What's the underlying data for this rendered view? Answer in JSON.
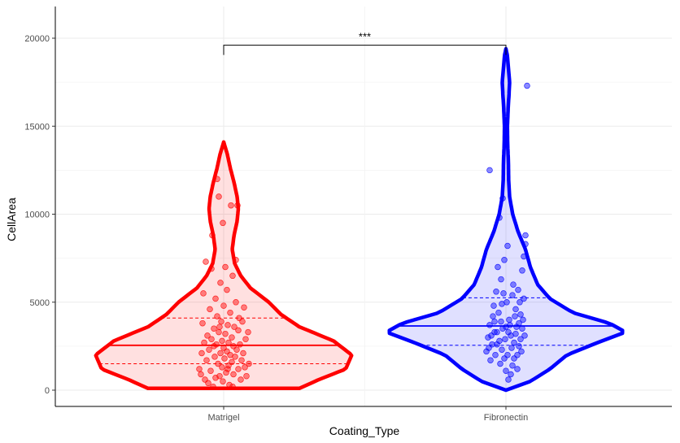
{
  "chart_data": {
    "type": "violin",
    "xlabel": "Coating_Type",
    "ylabel": "CellArea",
    "ylim": [
      -700,
      22000
    ],
    "yticks": [
      0,
      5000,
      10000,
      15000,
      20000
    ],
    "ytick_labels": [
      "0",
      "5000",
      "10000",
      "15000",
      "20000"
    ],
    "grid": true,
    "categories": [
      "Matrigel",
      "Fibronectin"
    ],
    "series": [
      {
        "name": "Matrigel",
        "color": "#ff0000",
        "median": 2550,
        "q1": 1500,
        "q3": 4100,
        "density_profile": [
          [
            100,
            0.62
          ],
          [
            600,
            0.78
          ],
          [
            1200,
            1.0
          ],
          [
            2000,
            1.05
          ],
          [
            2800,
            0.9
          ],
          [
            3600,
            0.62
          ],
          [
            4300,
            0.47
          ],
          [
            5000,
            0.37
          ],
          [
            5800,
            0.22
          ],
          [
            6500,
            0.14
          ],
          [
            7200,
            0.09
          ],
          [
            8000,
            0.07
          ],
          [
            8800,
            0.085
          ],
          [
            9600,
            0.11
          ],
          [
            10300,
            0.12
          ],
          [
            11000,
            0.11
          ],
          [
            11800,
            0.085
          ],
          [
            12600,
            0.055
          ],
          [
            13400,
            0.03
          ],
          [
            14100,
            0.0
          ]
        ],
        "points": [
          [
            -0.3,
            1200
          ],
          [
            -0.28,
            900
          ],
          [
            -0.26,
            3800
          ],
          [
            -0.25,
            5500
          ],
          [
            -0.24,
            2700
          ],
          [
            -0.23,
            600
          ],
          [
            -0.22,
            7300
          ],
          [
            -0.21,
            1700
          ],
          [
            -0.2,
            3100
          ],
          [
            -0.19,
            400
          ],
          [
            -0.18,
            2300
          ],
          [
            -0.17,
            4600
          ],
          [
            -0.16,
            1100
          ],
          [
            -0.15,
            2900
          ],
          [
            -0.14,
            8800
          ],
          [
            -0.13,
            200
          ],
          [
            -0.12,
            3500
          ],
          [
            -0.11,
            1900
          ],
          [
            -0.1,
            5200
          ],
          [
            -0.1,
            700
          ],
          [
            -0.09,
            2600
          ],
          [
            -0.08,
            12000
          ],
          [
            -0.08,
            4200
          ],
          [
            -0.07,
            1500
          ],
          [
            -0.06,
            3300
          ],
          [
            -0.06,
            11000
          ],
          [
            -0.05,
            800
          ],
          [
            -0.04,
            2100
          ],
          [
            -0.04,
            6100
          ],
          [
            -0.03,
            3900
          ],
          [
            -0.02,
            1300
          ],
          [
            -0.02,
            2800
          ],
          [
            -0.01,
            9500
          ],
          [
            -0.01,
            500
          ],
          [
            0.0,
            2400
          ],
          [
            0.0,
            4800
          ],
          [
            0.01,
            1800
          ],
          [
            0.02,
            3200
          ],
          [
            0.02,
            7000
          ],
          [
            0.03,
            1000
          ],
          [
            0.04,
            2200
          ],
          [
            0.04,
            5700
          ],
          [
            0.05,
            3700
          ],
          [
            0.06,
            1400
          ],
          [
            0.06,
            2700
          ],
          [
            0.07,
            300
          ],
          [
            0.08,
            4400
          ],
          [
            0.08,
            2000
          ],
          [
            0.09,
            10500
          ],
          [
            0.1,
            3000
          ],
          [
            0.1,
            1600
          ],
          [
            0.11,
            6500
          ],
          [
            0.12,
            2500
          ],
          [
            0.12,
            900
          ],
          [
            0.13,
            3600
          ],
          [
            0.14,
            1900
          ],
          [
            0.15,
            5000
          ],
          [
            0.16,
            2300
          ],
          [
            0.17,
            10500
          ],
          [
            0.18,
            1200
          ],
          [
            0.18,
            3400
          ],
          [
            0.19,
            4100
          ],
          [
            0.2,
            2600
          ],
          [
            0.21,
            600
          ],
          [
            0.22,
            1700
          ],
          [
            0.23,
            3900
          ],
          [
            0.24,
            2100
          ],
          [
            0.25,
            4700
          ],
          [
            0.26,
            1300
          ],
          [
            0.27,
            2900
          ],
          [
            0.28,
            800
          ],
          [
            0.3,
            3300
          ],
          [
            0.31,
            1500
          ],
          [
            -0.27,
            2100
          ],
          [
            -0.15,
            6900
          ],
          [
            0.15,
            7400
          ],
          [
            0.05,
            1200
          ],
          [
            -0.05,
            3600
          ],
          [
            0.11,
            200
          ],
          [
            -0.12,
            2500
          ]
        ]
      },
      {
        "name": "Fibronectin",
        "color": "#0000ff",
        "median": 3650,
        "q1": 2550,
        "q3": 5250,
        "density_profile": [
          [
            0,
            0.0
          ],
          [
            500,
            0.2
          ],
          [
            1200,
            0.36
          ],
          [
            2000,
            0.5
          ],
          [
            2700,
            0.75
          ],
          [
            3300,
            0.98
          ],
          [
            3800,
            0.85
          ],
          [
            4400,
            0.55
          ],
          [
            5200,
            0.36
          ],
          [
            6000,
            0.26
          ],
          [
            7000,
            0.2
          ],
          [
            8000,
            0.16
          ],
          [
            9000,
            0.1
          ],
          [
            10000,
            0.055
          ],
          [
            11000,
            0.03
          ],
          [
            12000,
            0.022
          ],
          [
            13000,
            0.02
          ],
          [
            14000,
            0.014
          ],
          [
            15000,
            0.012
          ],
          [
            16000,
            0.018
          ],
          [
            16800,
            0.025
          ],
          [
            17500,
            0.03
          ],
          [
            18300,
            0.02
          ],
          [
            19000,
            0.012
          ],
          [
            19400,
            0.0
          ]
        ],
        "points": [
          [
            -0.2,
            12500
          ],
          [
            -0.08,
            9800
          ],
          [
            -0.04,
            10900
          ],
          [
            0.26,
            17300
          ],
          [
            0.24,
            8800
          ],
          [
            0.24,
            8300
          ],
          [
            0.22,
            7600
          ],
          [
            0.2,
            6800
          ],
          [
            0.22,
            5200
          ],
          [
            0.18,
            4300
          ],
          [
            0.16,
            3800
          ],
          [
            0.12,
            3200
          ],
          [
            0.1,
            2700
          ],
          [
            0.14,
            2000
          ],
          [
            0.08,
            1400
          ],
          [
            0.06,
            900
          ],
          [
            0.03,
            600
          ],
          [
            0.0,
            1100
          ],
          [
            -0.02,
            1800
          ],
          [
            -0.05,
            2300
          ],
          [
            -0.08,
            2800
          ],
          [
            -0.11,
            3300
          ],
          [
            -0.14,
            3900
          ],
          [
            -0.17,
            2600
          ],
          [
            -0.19,
            1700
          ],
          [
            -0.22,
            3000
          ],
          [
            -0.24,
            2200
          ],
          [
            -0.15,
            4800
          ],
          [
            -0.12,
            5600
          ],
          [
            -0.06,
            6300
          ],
          [
            -0.02,
            7400
          ],
          [
            0.02,
            8200
          ],
          [
            -0.1,
            7000
          ],
          [
            0.08,
            5400
          ],
          [
            0.12,
            4600
          ],
          [
            0.04,
            4000
          ],
          [
            -0.04,
            3500
          ],
          [
            0.06,
            3100
          ],
          [
            -0.2,
            3700
          ],
          [
            -0.16,
            4200
          ],
          [
            0.16,
            2500
          ],
          [
            0.2,
            3500
          ],
          [
            -0.01,
            2900
          ],
          [
            0.02,
            2000
          ],
          [
            -0.07,
            1500
          ],
          [
            0.1,
            1800
          ],
          [
            -0.13,
            2000
          ],
          [
            0.14,
            1200
          ],
          [
            0.18,
            2900
          ],
          [
            0.05,
            3700
          ],
          [
            -0.09,
            4400
          ],
          [
            0.01,
            5000
          ],
          [
            0.09,
            6000
          ],
          [
            -0.03,
            5500
          ],
          [
            0.13,
            3600
          ],
          [
            -0.18,
            3100
          ],
          [
            0.21,
            4000
          ],
          [
            0.07,
            2400
          ],
          [
            -0.11,
            2600
          ],
          [
            0.03,
            3300
          ],
          [
            -0.06,
            3900
          ],
          [
            0.11,
            4200
          ],
          [
            0.17,
            5000
          ],
          [
            -0.21,
            2400
          ],
          [
            -0.14,
            3300
          ],
          [
            0.19,
            2200
          ],
          [
            0.23,
            3100
          ],
          [
            -0.05,
            4900
          ],
          [
            0.15,
            5700
          ],
          [
            0.0,
            3600
          ]
        ]
      }
    ],
    "annotations": [
      {
        "text": "***",
        "between": [
          "Matrigel",
          "Fibronectin"
        ],
        "y": 19600
      }
    ]
  }
}
